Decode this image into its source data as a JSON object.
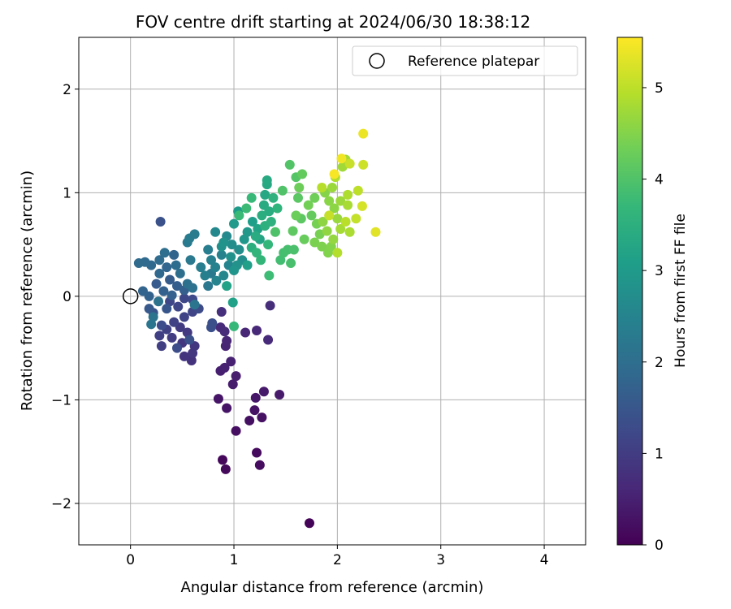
{
  "chart_data": {
    "type": "scatter",
    "title": "FOV centre drift starting at 2024/06/30 18:38:12",
    "xlabel": "Angular distance from reference (arcmin)",
    "ylabel": "Rotation from reference (arcmin)",
    "xlim": [
      -0.5,
      4.4
    ],
    "ylim": [
      -2.4,
      2.5
    ],
    "xticks": [
      0,
      1,
      2,
      3,
      4
    ],
    "xtick_labels": [
      "0",
      "1",
      "2",
      "3",
      "4"
    ],
    "yticks": [
      -2,
      -1,
      0,
      1,
      2
    ],
    "ytick_labels": [
      "−2",
      "−1",
      "0",
      "1",
      "2"
    ],
    "grid": true,
    "legend": {
      "position": "top-right",
      "entries": [
        {
          "label": "Reference platepar",
          "marker": "open-circle"
        }
      ]
    },
    "reference_point": {
      "x": 0,
      "y": 0
    },
    "colorbar": {
      "label": "Hours from first FF file",
      "colormap": "viridis",
      "range": [
        0,
        5.55
      ],
      "ticks": [
        0,
        1,
        2,
        3,
        4,
        5
      ],
      "tick_labels": [
        "0",
        "1",
        "2",
        "3",
        "4",
        "5"
      ],
      "stops": [
        "#440154",
        "#482878",
        "#3e4989",
        "#31688e",
        "#26828e",
        "#1f9e89",
        "#35b779",
        "#6ece58",
        "#b5de2b",
        "#fde725"
      ]
    },
    "points": [
      {
        "x": 1.73,
        "y": -2.19,
        "c": 0.05
      },
      {
        "x": 0.89,
        "y": -1.58,
        "c": 0.1
      },
      {
        "x": 0.92,
        "y": -1.67,
        "c": 0.12
      },
      {
        "x": 1.22,
        "y": -1.51,
        "c": 0.15
      },
      {
        "x": 1.25,
        "y": -1.63,
        "c": 0.18
      },
      {
        "x": 1.02,
        "y": -1.3,
        "c": 0.2
      },
      {
        "x": 1.15,
        "y": -1.2,
        "c": 0.22
      },
      {
        "x": 1.27,
        "y": -1.17,
        "c": 0.25
      },
      {
        "x": 1.2,
        "y": -1.1,
        "c": 0.28
      },
      {
        "x": 0.93,
        "y": -1.08,
        "c": 0.3
      },
      {
        "x": 0.85,
        "y": -0.99,
        "c": 0.32
      },
      {
        "x": 1.21,
        "y": -0.98,
        "c": 0.35
      },
      {
        "x": 1.29,
        "y": -0.92,
        "c": 0.38
      },
      {
        "x": 1.44,
        "y": -0.95,
        "c": 0.4
      },
      {
        "x": 0.99,
        "y": -0.85,
        "c": 0.42
      },
      {
        "x": 1.02,
        "y": -0.77,
        "c": 0.45
      },
      {
        "x": 0.87,
        "y": -0.72,
        "c": 0.48
      },
      {
        "x": 0.91,
        "y": -0.69,
        "c": 0.5
      },
      {
        "x": 0.97,
        "y": -0.63,
        "c": 0.52
      },
      {
        "x": 0.92,
        "y": -0.48,
        "c": 0.55
      },
      {
        "x": 0.93,
        "y": -0.43,
        "c": 0.58
      },
      {
        "x": 1.11,
        "y": -0.35,
        "c": 0.6
      },
      {
        "x": 1.22,
        "y": -0.33,
        "c": 0.62
      },
      {
        "x": 1.33,
        "y": -0.42,
        "c": 0.65
      },
      {
        "x": 0.87,
        "y": -0.3,
        "c": 0.68
      },
      {
        "x": 0.91,
        "y": -0.34,
        "c": 0.7
      },
      {
        "x": 1.35,
        "y": -0.09,
        "c": 0.72
      },
      {
        "x": 0.88,
        "y": -0.15,
        "c": 0.75
      },
      {
        "x": 0.59,
        "y": -0.62,
        "c": 0.8
      },
      {
        "x": 0.52,
        "y": -0.58,
        "c": 0.85
      },
      {
        "x": 0.6,
        "y": -0.55,
        "c": 0.88
      },
      {
        "x": 0.62,
        "y": -0.48,
        "c": 0.9
      },
      {
        "x": 0.5,
        "y": -0.45,
        "c": 0.92
      },
      {
        "x": 0.55,
        "y": -0.35,
        "c": 0.95
      },
      {
        "x": 0.48,
        "y": -0.3,
        "c": 0.98
      },
      {
        "x": 0.4,
        "y": -0.4,
        "c": 1.0
      },
      {
        "x": 0.3,
        "y": -0.48,
        "c": 1.02
      },
      {
        "x": 0.28,
        "y": -0.38,
        "c": 1.05
      },
      {
        "x": 0.35,
        "y": -0.32,
        "c": 1.08
      },
      {
        "x": 0.42,
        "y": -0.25,
        "c": 1.1
      },
      {
        "x": 0.52,
        "y": -0.2,
        "c": 1.12
      },
      {
        "x": 0.6,
        "y": -0.15,
        "c": 1.15
      },
      {
        "x": 0.46,
        "y": -0.1,
        "c": 1.18
      },
      {
        "x": 0.38,
        "y": -0.05,
        "c": 1.2
      },
      {
        "x": 0.52,
        "y": -0.02,
        "c": 1.22
      },
      {
        "x": 0.6,
        "y": -0.03,
        "c": 1.25
      },
      {
        "x": 0.66,
        "y": -0.12,
        "c": 1.28
      },
      {
        "x": 0.3,
        "y": -0.28,
        "c": 1.3
      },
      {
        "x": 0.45,
        "y": -0.5,
        "c": 1.32
      },
      {
        "x": 0.79,
        "y": -0.26,
        "c": 1.35
      },
      {
        "x": 0.78,
        "y": -0.3,
        "c": 1.38
      },
      {
        "x": 0.57,
        "y": -0.42,
        "c": 1.4
      },
      {
        "x": 0.29,
        "y": 0.72,
        "c": 1.4
      },
      {
        "x": 0.22,
        "y": -0.16,
        "c": 1.45
      },
      {
        "x": 0.35,
        "y": -0.12,
        "c": 1.5
      },
      {
        "x": 0.18,
        "y": -0.12,
        "c": 1.55
      },
      {
        "x": 0.25,
        "y": 0.12,
        "c": 1.6
      },
      {
        "x": 0.38,
        "y": 0.16,
        "c": 1.62
      },
      {
        "x": 0.45,
        "y": 0.1,
        "c": 1.65
      },
      {
        "x": 0.52,
        "y": 0.06,
        "c": 1.68
      },
      {
        "x": 0.32,
        "y": 0.05,
        "c": 1.7
      },
      {
        "x": 0.4,
        "y": 0.01,
        "c": 1.72
      },
      {
        "x": 0.18,
        "y": 0.0,
        "c": 1.75
      },
      {
        "x": 0.12,
        "y": 0.05,
        "c": 1.78
      },
      {
        "x": 0.42,
        "y": 0.4,
        "c": 1.8
      },
      {
        "x": 0.35,
        "y": 0.28,
        "c": 1.82
      },
      {
        "x": 0.28,
        "y": 0.22,
        "c": 1.85
      },
      {
        "x": 0.2,
        "y": 0.3,
        "c": 1.88
      },
      {
        "x": 0.14,
        "y": 0.33,
        "c": 1.9
      },
      {
        "x": 0.08,
        "y": 0.32,
        "c": 1.92
      },
      {
        "x": 0.28,
        "y": 0.35,
        "c": 1.95
      },
      {
        "x": 0.44,
        "y": 0.3,
        "c": 1.98
      },
      {
        "x": 0.33,
        "y": 0.42,
        "c": 2.0
      },
      {
        "x": 0.48,
        "y": 0.22,
        "c": 2.02
      },
      {
        "x": 0.55,
        "y": 0.12,
        "c": 2.05
      },
      {
        "x": 0.6,
        "y": 0.08,
        "c": 2.08
      },
      {
        "x": 0.27,
        "y": -0.05,
        "c": 2.1
      },
      {
        "x": 0.22,
        "y": -0.2,
        "c": 2.12
      },
      {
        "x": 0.2,
        "y": -0.27,
        "c": 2.15
      },
      {
        "x": 0.62,
        "y": -0.08,
        "c": 2.18
      },
      {
        "x": 0.75,
        "y": 0.1,
        "c": 2.2
      },
      {
        "x": 0.78,
        "y": 0.22,
        "c": 2.22
      },
      {
        "x": 0.58,
        "y": 0.35,
        "c": 2.25
      },
      {
        "x": 0.55,
        "y": 0.52,
        "c": 2.28
      },
      {
        "x": 0.57,
        "y": 0.56,
        "c": 2.3
      },
      {
        "x": 0.62,
        "y": 0.6,
        "c": 2.32
      },
      {
        "x": 0.75,
        "y": 0.45,
        "c": 2.35
      },
      {
        "x": 0.68,
        "y": 0.28,
        "c": 2.38
      },
      {
        "x": 0.72,
        "y": 0.2,
        "c": 2.4
      },
      {
        "x": 0.78,
        "y": 0.35,
        "c": 2.42
      },
      {
        "x": 0.82,
        "y": 0.28,
        "c": 2.45
      },
      {
        "x": 0.88,
        "y": 0.4,
        "c": 2.48
      },
      {
        "x": 0.95,
        "y": 0.3,
        "c": 2.5
      },
      {
        "x": 0.83,
        "y": 0.15,
        "c": 2.52
      },
      {
        "x": 0.9,
        "y": 0.2,
        "c": 2.55
      },
      {
        "x": 0.82,
        "y": 0.62,
        "c": 2.6
      },
      {
        "x": 0.93,
        "y": 0.58,
        "c": 2.65
      },
      {
        "x": 0.98,
        "y": 0.5,
        "c": 2.7
      },
      {
        "x": 1.05,
        "y": 0.45,
        "c": 2.72
      },
      {
        "x": 1.08,
        "y": 0.35,
        "c": 2.75
      },
      {
        "x": 0.88,
        "y": 0.48,
        "c": 2.78
      },
      {
        "x": 0.97,
        "y": 0.38,
        "c": 2.8
      },
      {
        "x": 1.03,
        "y": 0.3,
        "c": 2.82
      },
      {
        "x": 0.9,
        "y": 0.52,
        "c": 2.85
      },
      {
        "x": 1.0,
        "y": 0.25,
        "c": 2.88
      },
      {
        "x": 1.1,
        "y": 0.55,
        "c": 2.9
      },
      {
        "x": 1.13,
        "y": 0.62,
        "c": 2.95
      },
      {
        "x": 1.0,
        "y": 0.7,
        "c": 3.0
      },
      {
        "x": 1.04,
        "y": 0.82,
        "c": 3.05
      },
      {
        "x": 1.18,
        "y": 0.72,
        "c": 3.08
      },
      {
        "x": 1.13,
        "y": 0.3,
        "c": 3.1
      },
      {
        "x": 0.99,
        "y": -0.06,
        "c": 3.15
      },
      {
        "x": 0.93,
        "y": 0.1,
        "c": 3.18
      },
      {
        "x": 1.23,
        "y": 0.65,
        "c": 3.2
      },
      {
        "x": 1.25,
        "y": 0.55,
        "c": 3.22
      },
      {
        "x": 1.3,
        "y": 0.98,
        "c": 3.3
      },
      {
        "x": 1.32,
        "y": 1.08,
        "c": 3.32
      },
      {
        "x": 1.32,
        "y": 1.12,
        "c": 3.35
      },
      {
        "x": 1.29,
        "y": 0.88,
        "c": 3.38
      },
      {
        "x": 1.21,
        "y": 0.58,
        "c": 3.4
      },
      {
        "x": 1.34,
        "y": 0.82,
        "c": 3.42
      },
      {
        "x": 1.27,
        "y": 0.78,
        "c": 3.45
      },
      {
        "x": 1.17,
        "y": 0.47,
        "c": 3.48
      },
      {
        "x": 1.3,
        "y": 0.68,
        "c": 3.5
      },
      {
        "x": 1.36,
        "y": 0.72,
        "c": 3.52
      },
      {
        "x": 1.38,
        "y": 0.95,
        "c": 3.55
      },
      {
        "x": 1.42,
        "y": 0.85,
        "c": 3.6
      },
      {
        "x": 1.22,
        "y": 0.42,
        "c": 3.62
      },
      {
        "x": 1.26,
        "y": 0.35,
        "c": 3.65
      },
      {
        "x": 1.33,
        "y": 0.5,
        "c": 3.68
      },
      {
        "x": 1.0,
        "y": -0.29,
        "c": 3.7
      },
      {
        "x": 1.17,
        "y": 0.95,
        "c": 3.72
      },
      {
        "x": 1.05,
        "y": 0.78,
        "c": 3.75
      },
      {
        "x": 1.12,
        "y": 0.85,
        "c": 3.78
      },
      {
        "x": 1.34,
        "y": 0.2,
        "c": 3.8
      },
      {
        "x": 1.45,
        "y": 0.35,
        "c": 3.85
      },
      {
        "x": 1.48,
        "y": 0.42,
        "c": 3.88
      },
      {
        "x": 1.52,
        "y": 0.45,
        "c": 3.9
      },
      {
        "x": 1.55,
        "y": 0.32,
        "c": 3.92
      },
      {
        "x": 1.58,
        "y": 0.45,
        "c": 3.95
      },
      {
        "x": 1.4,
        "y": 0.62,
        "c": 3.98
      },
      {
        "x": 1.47,
        "y": 1.02,
        "c": 4.0
      },
      {
        "x": 1.54,
        "y": 1.27,
        "c": 4.02
      },
      {
        "x": 1.6,
        "y": 1.15,
        "c": 4.05
      },
      {
        "x": 1.62,
        "y": 0.95,
        "c": 4.1
      },
      {
        "x": 1.65,
        "y": 0.75,
        "c": 4.12
      },
      {
        "x": 1.57,
        "y": 0.63,
        "c": 4.15
      },
      {
        "x": 1.66,
        "y": 1.18,
        "c": 4.2
      },
      {
        "x": 1.75,
        "y": 0.78,
        "c": 4.22
      },
      {
        "x": 1.68,
        "y": 0.55,
        "c": 4.25
      },
      {
        "x": 1.6,
        "y": 0.78,
        "c": 4.28
      },
      {
        "x": 1.63,
        "y": 1.05,
        "c": 4.3
      },
      {
        "x": 1.78,
        "y": 0.95,
        "c": 4.32
      },
      {
        "x": 1.72,
        "y": 0.88,
        "c": 4.35
      },
      {
        "x": 1.8,
        "y": 0.7,
        "c": 4.38
      },
      {
        "x": 1.83,
        "y": 0.6,
        "c": 4.4
      },
      {
        "x": 1.78,
        "y": 0.52,
        "c": 4.42
      },
      {
        "x": 1.85,
        "y": 0.48,
        "c": 4.45
      },
      {
        "x": 1.91,
        "y": 0.42,
        "c": 4.48
      },
      {
        "x": 1.94,
        "y": 0.48,
        "c": 4.5
      },
      {
        "x": 1.88,
        "y": 1.0,
        "c": 4.52
      },
      {
        "x": 1.92,
        "y": 0.92,
        "c": 4.55
      },
      {
        "x": 1.97,
        "y": 0.85,
        "c": 4.58
      },
      {
        "x": 1.86,
        "y": 0.72,
        "c": 4.6
      },
      {
        "x": 1.9,
        "y": 0.63,
        "c": 4.62
      },
      {
        "x": 1.96,
        "y": 0.55,
        "c": 4.65
      },
      {
        "x": 2.0,
        "y": 0.75,
        "c": 4.68
      },
      {
        "x": 1.95,
        "y": 1.05,
        "c": 4.7
      },
      {
        "x": 2.03,
        "y": 0.92,
        "c": 4.72
      },
      {
        "x": 2.05,
        "y": 1.25,
        "c": 4.75
      },
      {
        "x": 2.08,
        "y": 1.32,
        "c": 4.78
      },
      {
        "x": 2.03,
        "y": 0.65,
        "c": 4.8
      },
      {
        "x": 2.1,
        "y": 0.88,
        "c": 4.82
      },
      {
        "x": 2.12,
        "y": 0.62,
        "c": 4.85
      },
      {
        "x": 2.1,
        "y": 0.98,
        "c": 4.88
      },
      {
        "x": 1.98,
        "y": 1.15,
        "c": 4.9
      },
      {
        "x": 2.0,
        "y": 0.42,
        "c": 4.92
      },
      {
        "x": 1.85,
        "y": 1.05,
        "c": 4.95
      },
      {
        "x": 2.08,
        "y": 0.72,
        "c": 4.98
      },
      {
        "x": 2.2,
        "y": 1.02,
        "c": 5.0
      },
      {
        "x": 2.18,
        "y": 0.75,
        "c": 5.05
      },
      {
        "x": 1.92,
        "y": 0.78,
        "c": 5.08
      },
      {
        "x": 2.12,
        "y": 1.28,
        "c": 5.1
      },
      {
        "x": 2.25,
        "y": 1.27,
        "c": 5.15
      },
      {
        "x": 2.24,
        "y": 0.87,
        "c": 5.2
      },
      {
        "x": 2.37,
        "y": 0.62,
        "c": 5.3
      },
      {
        "x": 2.25,
        "y": 1.57,
        "c": 5.4
      },
      {
        "x": 2.04,
        "y": 1.33,
        "c": 5.45
      },
      {
        "x": 1.97,
        "y": 1.18,
        "c": 5.5
      }
    ]
  }
}
